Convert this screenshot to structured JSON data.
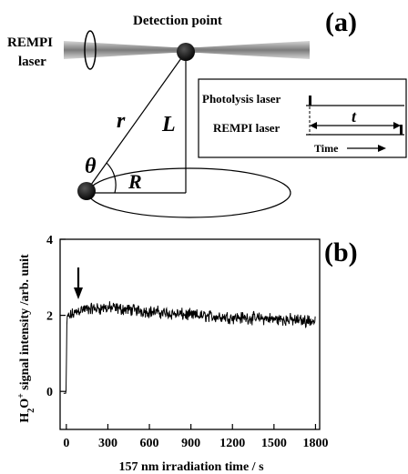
{
  "panel_a": {
    "label": "(a)",
    "detection_point": "Detection point",
    "rempi_laser_line1": "REMPI",
    "rempi_laser_line2": "laser",
    "symbol_r": "r",
    "symbol_L": "L",
    "symbol_theta": "θ",
    "symbol_R": "R",
    "timing": {
      "photolysis_label": "Photolysis laser",
      "rempi_label": "REMPI laser",
      "t_label": "t",
      "time_label": "Time"
    }
  },
  "chart_data": {
    "type": "line",
    "panel_label": "(b)",
    "xlabel": "157 nm irradiation time / s",
    "ylabel_prefix": "H",
    "ylabel_sub": "2",
    "ylabel_mid": "O",
    "ylabel_sup": "+",
    "ylabel_suffix": " signal intensity /arb. unit",
    "xlim": [
      -45,
      1830
    ],
    "ylim": [
      -1,
      4
    ],
    "xticks": [
      0,
      300,
      600,
      900,
      1200,
      1500,
      1800
    ],
    "yticks": [
      0,
      2,
      4
    ],
    "arrow_at_x": 0,
    "series": [
      {
        "x": [
          -20,
          -5,
          0,
          2,
          10,
          100,
          300,
          600,
          900,
          1200,
          1500,
          1800
        ],
        "y": [
          -0.05,
          -0.05,
          0.05,
          1.7,
          1.95,
          2.15,
          2.2,
          2.1,
          2.0,
          1.95,
          1.9,
          1.85
        ],
        "noise": 0.2
      }
    ]
  }
}
